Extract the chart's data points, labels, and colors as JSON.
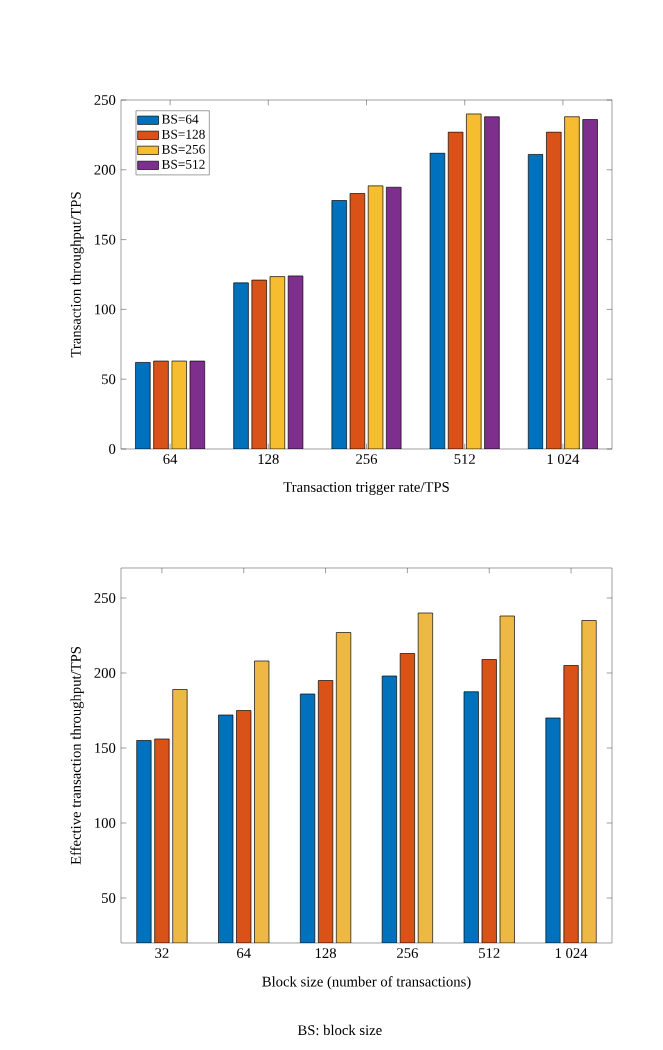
{
  "chart_data": [
    {
      "type": "bar",
      "xlabel": "Transaction trigger rate/TPS",
      "ylabel": "Transaction throughput/TPS",
      "categories": [
        "64",
        "128",
        "256",
        "512",
        "1 024"
      ],
      "series": [
        {
          "name": "BS=64",
          "color": "#0072bd",
          "values": [
            62,
            119,
            178,
            212,
            211
          ]
        },
        {
          "name": "BS=128",
          "color": "#d95319",
          "values": [
            63,
            121,
            183,
            227,
            227
          ]
        },
        {
          "name": "BS=256",
          "color": "#f5bd2f",
          "values": [
            63,
            123.5,
            188.5,
            240,
            238
          ]
        },
        {
          "name": "BS=512",
          "color": "#7e2f8e",
          "values": [
            63,
            124,
            187.5,
            238,
            236
          ]
        }
      ],
      "ylim": [
        0,
        250
      ],
      "yticks": [
        0,
        50,
        100,
        150,
        200,
        250
      ],
      "legend": "top left"
    },
    {
      "type": "bar",
      "xlabel": "Block size (number of transactions)",
      "ylabel": "Effective transaction throughput/TPS",
      "categories": [
        "32",
        "64",
        "128",
        "256",
        "512",
        "1 024"
      ],
      "series": [
        {
          "color": "#0072bd",
          "values": [
            155,
            172,
            186,
            198,
            187.5,
            170
          ]
        },
        {
          "color": "#d95319",
          "values": [
            156,
            175,
            195,
            213,
            209,
            205
          ]
        },
        {
          "color": "#edb843",
          "values": [
            189,
            208,
            227,
            240,
            238,
            235
          ]
        }
      ],
      "ylim": [
        20,
        270
      ],
      "yticks": [
        50,
        100,
        150,
        200,
        250
      ],
      "annotations": [
        "BS: block size"
      ]
    }
  ]
}
